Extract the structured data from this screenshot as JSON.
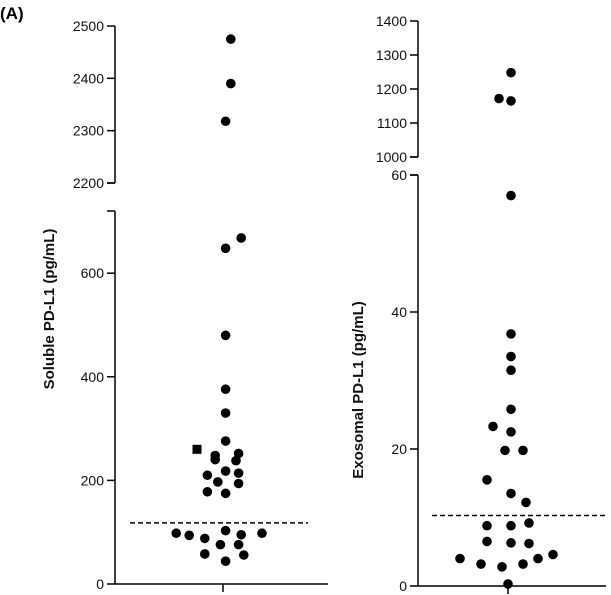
{
  "panel_label": "(A)",
  "chart_data": [
    {
      "type": "scatter",
      "ylabel": "Soluble PD-L1 (pg/mL)",
      "y_axis_broken": true,
      "segments": [
        {
          "ylim": [
            0,
            720
          ],
          "ticks": [
            0,
            200,
            400,
            600
          ]
        },
        {
          "ylim": [
            2200,
            2500
          ],
          "ticks": [
            2200,
            2300,
            2400,
            2500
          ]
        }
      ],
      "threshold_line": 118,
      "points": [
        {
          "x": 0.15,
          "y": 2475
        },
        {
          "x": 0.15,
          "y": 2390
        },
        {
          "x": 0.05,
          "y": 2318
        },
        {
          "x": 0.35,
          "y": 668
        },
        {
          "x": 0.05,
          "y": 648
        },
        {
          "x": 0.05,
          "y": 480
        },
        {
          "x": 0.05,
          "y": 376
        },
        {
          "x": 0.05,
          "y": 330
        },
        {
          "x": 0.05,
          "y": 276
        },
        {
          "x": -0.5,
          "y": 260,
          "marker": "square"
        },
        {
          "x": -0.15,
          "y": 248
        },
        {
          "x": 0.3,
          "y": 252
        },
        {
          "x": -0.15,
          "y": 240
        },
        {
          "x": 0.25,
          "y": 238
        },
        {
          "x": 0.05,
          "y": 218
        },
        {
          "x": -0.3,
          "y": 210
        },
        {
          "x": 0.3,
          "y": 214
        },
        {
          "x": -0.1,
          "y": 197
        },
        {
          "x": 0.3,
          "y": 194
        },
        {
          "x": -0.3,
          "y": 178
        },
        {
          "x": 0.05,
          "y": 175
        },
        {
          "x": 0.05,
          "y": 103
        },
        {
          "x": -0.9,
          "y": 98
        },
        {
          "x": -0.65,
          "y": 94
        },
        {
          "x": -0.35,
          "y": 88
        },
        {
          "x": 0.35,
          "y": 95
        },
        {
          "x": 0.75,
          "y": 98
        },
        {
          "x": -0.05,
          "y": 76
        },
        {
          "x": 0.3,
          "y": 76
        },
        {
          "x": -0.35,
          "y": 58
        },
        {
          "x": 0.4,
          "y": 56
        },
        {
          "x": 0.05,
          "y": 44
        }
      ]
    },
    {
      "type": "scatter",
      "ylabel": "Exosomal PD-L1 (pg/mL)",
      "y_axis_broken": true,
      "segments": [
        {
          "ylim": [
            0,
            60
          ],
          "ticks": [
            0,
            20,
            40,
            60
          ]
        },
        {
          "ylim": [
            1000,
            1400
          ],
          "ticks": [
            1000,
            1100,
            1200,
            1300,
            1400
          ]
        }
      ],
      "threshold_line": 10.3,
      "points": [
        {
          "x": 0.05,
          "y": 1248
        },
        {
          "x": -0.15,
          "y": 1172
        },
        {
          "x": 0.05,
          "y": 1165
        },
        {
          "x": 0.05,
          "y": 57
        },
        {
          "x": 0.05,
          "y": 36.8
        },
        {
          "x": 0.05,
          "y": 33.5
        },
        {
          "x": 0.05,
          "y": 31.5
        },
        {
          "x": 0.05,
          "y": 25.8
        },
        {
          "x": -0.25,
          "y": 23.3
        },
        {
          "x": 0.05,
          "y": 22.5
        },
        {
          "x": -0.05,
          "y": 19.8
        },
        {
          "x": 0.25,
          "y": 19.8
        },
        {
          "x": -0.35,
          "y": 15.5
        },
        {
          "x": 0.05,
          "y": 13.5
        },
        {
          "x": 0.3,
          "y": 12.2
        },
        {
          "x": -0.35,
          "y": 8.8
        },
        {
          "x": 0.05,
          "y": 8.8
        },
        {
          "x": 0.35,
          "y": 9.2
        },
        {
          "x": -0.35,
          "y": 6.5
        },
        {
          "x": 0.05,
          "y": 6.3
        },
        {
          "x": 0.35,
          "y": 6.2
        },
        {
          "x": -0.8,
          "y": 4.0
        },
        {
          "x": -0.45,
          "y": 3.2
        },
        {
          "x": -0.1,
          "y": 2.8
        },
        {
          "x": 0.25,
          "y": 3.2
        },
        {
          "x": 0.5,
          "y": 4.0
        },
        {
          "x": 0.75,
          "y": 4.6
        },
        {
          "x": 0.0,
          "y": 0.3
        }
      ]
    }
  ]
}
